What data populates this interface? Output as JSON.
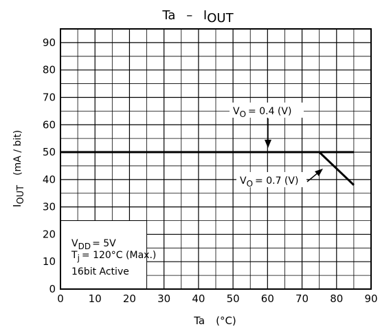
{
  "chart_data": {
    "type": "line",
    "title_main": "Ta",
    "title_dash": "–",
    "title_var": "I",
    "title_var_sub": "OUT",
    "xlabel_var": "Ta",
    "xlabel_unit": "(°C)",
    "ylabel_var": "I",
    "ylabel_var_sub": "OUT",
    "ylabel_unit": "(mA / bit)",
    "xlim": [
      0,
      90
    ],
    "ylim": [
      0,
      95
    ],
    "x_ticks": [
      "0",
      "10",
      "20",
      "30",
      "40",
      "50",
      "60",
      "70",
      "80",
      "90"
    ],
    "y_ticks": [
      "0",
      "10",
      "20",
      "30",
      "40",
      "50",
      "60",
      "70",
      "80",
      "90"
    ],
    "grid": true,
    "series": [
      {
        "label_var": "V",
        "label_sub": "O",
        "label_rest": "= 0.4 (V)",
        "x": [
          0,
          85
        ],
        "y": [
          50,
          50
        ]
      },
      {
        "label_var": "V",
        "label_sub": "O",
        "label_rest": "= 0.7 (V)",
        "x": [
          75,
          85
        ],
        "y": [
          50,
          38
        ]
      }
    ],
    "conditions": {
      "vdd": {
        "var": "V",
        "sub": "DD",
        "rest": "= 5V"
      },
      "tj": {
        "var": "T",
        "sub": "j",
        "rest": "= 120°C (Max.)"
      },
      "mode": "16bit Active"
    }
  }
}
